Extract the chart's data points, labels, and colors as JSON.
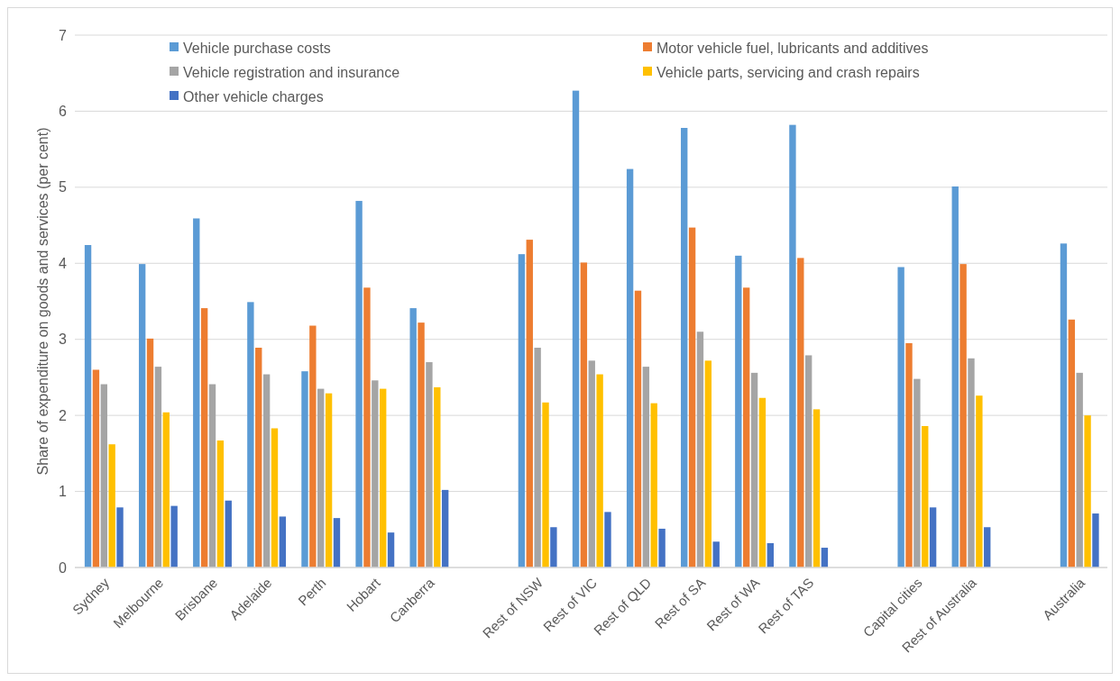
{
  "chart_data": {
    "type": "bar",
    "ylabel": "Share of expenditure on goods and services (per cent)",
    "categories": [
      "Sydney",
      "Melbourne",
      "Brisbane",
      "Adelaide",
      "Perth",
      "Hobart",
      "Canberra",
      null,
      "Rest of NSW",
      "Rest of VIC",
      "Rest of QLD",
      "Rest of SA",
      "Rest of WA",
      "Rest of TAS",
      null,
      "Capital cities",
      "Rest of Australia",
      null,
      "Australia"
    ],
    "series": [
      {
        "name": "Vehicle purchase costs",
        "color": "#5b9bd5",
        "values": [
          4.24,
          3.99,
          4.59,
          3.49,
          2.58,
          4.82,
          3.41,
          null,
          4.12,
          6.27,
          5.24,
          5.78,
          4.1,
          5.82,
          null,
          3.95,
          5.01,
          null,
          4.26
        ]
      },
      {
        "name": "Motor vehicle fuel, lubricants and additives",
        "color": "#ed7d31",
        "values": [
          2.6,
          3.01,
          3.41,
          2.89,
          3.18,
          3.68,
          3.22,
          null,
          4.31,
          4.01,
          3.64,
          4.47,
          3.68,
          4.07,
          null,
          2.95,
          3.99,
          null,
          3.26
        ]
      },
      {
        "name": "Vehicle registration and insurance",
        "color": "#a5a5a5",
        "values": [
          2.41,
          2.64,
          2.41,
          2.54,
          2.35,
          2.46,
          2.7,
          null,
          2.89,
          2.72,
          2.64,
          3.1,
          2.56,
          2.79,
          null,
          2.48,
          2.75,
          null,
          2.56
        ]
      },
      {
        "name": "Vehicle parts, servicing and crash repairs",
        "color": "#ffc000",
        "values": [
          1.62,
          2.04,
          1.67,
          1.83,
          2.29,
          2.35,
          2.37,
          null,
          2.17,
          2.54,
          2.16,
          2.72,
          2.23,
          2.08,
          null,
          1.86,
          2.26,
          null,
          2.0
        ]
      },
      {
        "name": "Other vehicle charges",
        "color": "#4472c4",
        "values": [
          0.79,
          0.81,
          0.88,
          0.67,
          0.65,
          0.46,
          1.02,
          null,
          0.53,
          0.73,
          0.51,
          0.34,
          0.32,
          0.26,
          null,
          0.79,
          0.53,
          null,
          0.71
        ]
      }
    ],
    "ylim": [
      0,
      7
    ],
    "yticks": [
      0,
      1,
      2,
      3,
      4,
      5,
      6,
      7
    ],
    "grid": "y",
    "legend": "top"
  }
}
